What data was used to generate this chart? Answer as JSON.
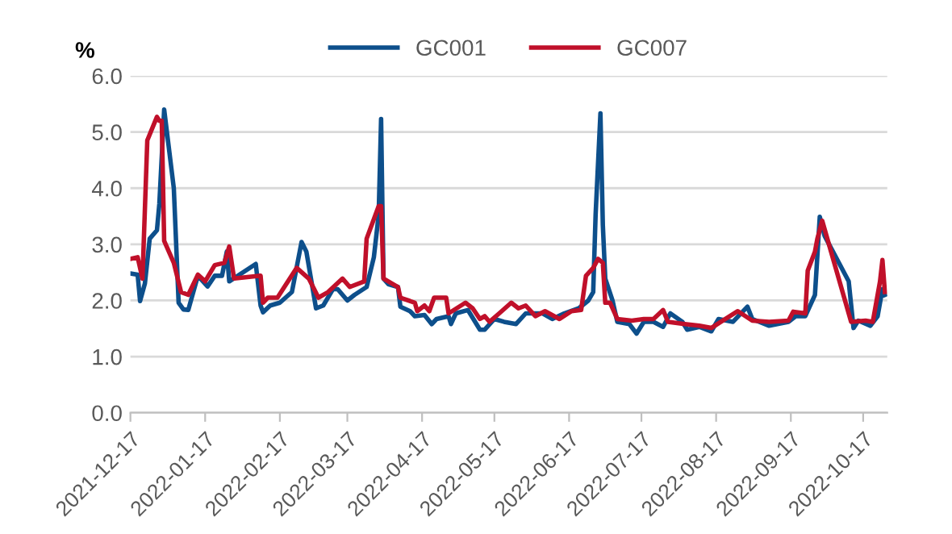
{
  "chart_data": {
    "type": "line",
    "ylabel": "%",
    "legend": "top",
    "grid": "y",
    "marker": "none",
    "line_style": "solid",
    "ylim": [
      0,
      6
    ],
    "yticks": [
      {
        "value": 0,
        "label": "0.0"
      },
      {
        "value": 1,
        "label": "1.0"
      },
      {
        "value": 2,
        "label": "2.0"
      },
      {
        "value": 3,
        "label": "3.0"
      },
      {
        "value": 4,
        "label": "4.0"
      },
      {
        "value": 5,
        "label": "5.0"
      },
      {
        "value": 6,
        "label": "6.0"
      }
    ],
    "xlim": [
      "2021-12-17",
      "2022-10-27"
    ],
    "xticks": [
      {
        "value": "2021-12-17",
        "label": "2021-12-17"
      },
      {
        "value": "2022-01-17",
        "label": "2022-01-17"
      },
      {
        "value": "2022-02-17",
        "label": "2022-02-17"
      },
      {
        "value": "2022-03-17",
        "label": "2022-03-17"
      },
      {
        "value": "2022-04-17",
        "label": "2022-04-17"
      },
      {
        "value": "2022-05-17",
        "label": "2022-05-17"
      },
      {
        "value": "2022-06-17",
        "label": "2022-06-17"
      },
      {
        "value": "2022-07-17",
        "label": "2022-07-17"
      },
      {
        "value": "2022-08-17",
        "label": "2022-08-17"
      },
      {
        "value": "2022-09-17",
        "label": "2022-09-17"
      },
      {
        "value": "2022-10-17",
        "label": "2022-10-17"
      }
    ],
    "series": [
      {
        "name": "GC001",
        "color": "#0d4f8b",
        "x": [
          "2021-12-17",
          "2021-12-20",
          "2021-12-21",
          "2021-12-23",
          "2021-12-25",
          "2021-12-28",
          "2021-12-29",
          "2021-12-31",
          "2022-01-04",
          "2022-01-06",
          "2022-01-08",
          "2022-01-10",
          "2022-01-14",
          "2022-01-18",
          "2022-01-21",
          "2022-01-24",
          "2022-01-26",
          "2022-01-27",
          "2022-02-07",
          "2022-02-09",
          "2022-02-10",
          "2022-02-13",
          "2022-02-17",
          "2022-02-22",
          "2022-02-26",
          "2022-02-28",
          "2022-03-04",
          "2022-03-07",
          "2022-03-11",
          "2022-03-13",
          "2022-03-17",
          "2022-03-20",
          "2022-03-25",
          "2022-03-28",
          "2022-03-30",
          "2022-03-31",
          "2022-04-01",
          "2022-04-03",
          "2022-04-07",
          "2022-04-08",
          "2022-04-12",
          "2022-04-14",
          "2022-04-18",
          "2022-04-21",
          "2022-04-23",
          "2022-04-28",
          "2022-04-29",
          "2022-05-01",
          "2022-05-06",
          "2022-05-11",
          "2022-05-13",
          "2022-05-17",
          "2022-05-21",
          "2022-05-26",
          "2022-05-30",
          "2022-06-06",
          "2022-06-10",
          "2022-06-15",
          "2022-06-21",
          "2022-06-25",
          "2022-06-27",
          "2022-06-28",
          "2022-06-30",
          "2022-07-01",
          "2022-07-02",
          "2022-07-05",
          "2022-07-07",
          "2022-07-12",
          "2022-07-15",
          "2022-07-18",
          "2022-07-22",
          "2022-07-26",
          "2022-07-29",
          "2022-08-03",
          "2022-08-05",
          "2022-08-10",
          "2022-08-15",
          "2022-08-18",
          "2022-08-24",
          "2022-08-30",
          "2022-09-01",
          "2022-09-08",
          "2022-09-16",
          "2022-09-19",
          "2022-09-23",
          "2022-09-27",
          "2022-09-29",
          "2022-10-01",
          "2022-10-11",
          "2022-10-13",
          "2022-10-15",
          "2022-10-20",
          "2022-10-23",
          "2022-10-25",
          "2022-10-26"
        ],
        "values": [
          2.48,
          2.46,
          1.99,
          2.3,
          3.1,
          3.25,
          3.72,
          5.4,
          4.0,
          1.96,
          1.84,
          1.83,
          2.44,
          2.25,
          2.44,
          2.44,
          2.87,
          2.34,
          2.65,
          1.91,
          1.79,
          1.91,
          1.96,
          2.15,
          3.04,
          2.87,
          1.86,
          1.91,
          2.2,
          2.2,
          2.0,
          2.1,
          2.24,
          2.77,
          3.53,
          5.23,
          2.39,
          2.29,
          2.24,
          1.89,
          1.81,
          1.72,
          1.74,
          1.58,
          1.67,
          1.72,
          1.58,
          1.77,
          1.83,
          1.48,
          1.48,
          1.67,
          1.62,
          1.58,
          1.77,
          1.77,
          1.67,
          1.77,
          1.86,
          2.0,
          2.15,
          3.53,
          5.33,
          3.34,
          2.39,
          2.0,
          1.62,
          1.58,
          1.41,
          1.62,
          1.62,
          1.53,
          1.77,
          1.62,
          1.48,
          1.53,
          1.45,
          1.67,
          1.62,
          1.89,
          1.67,
          1.55,
          1.62,
          1.72,
          1.72,
          2.1,
          3.49,
          3.15,
          2.34,
          1.51,
          1.64,
          1.55,
          1.72,
          2.2,
          2.1
        ]
      },
      {
        "name": "GC007",
        "color": "#c0102a",
        "x": [
          "2021-12-17",
          "2021-12-20",
          "2021-12-22",
          "2021-12-24",
          "2021-12-28",
          "2021-12-29",
          "2021-12-30",
          "2021-12-31",
          "2022-01-04",
          "2022-01-07",
          "2022-01-10",
          "2022-01-14",
          "2022-01-17",
          "2022-01-21",
          "2022-01-25",
          "2022-01-27",
          "2022-01-29",
          "2022-02-09",
          "2022-02-10",
          "2022-02-12",
          "2022-02-16",
          "2022-02-24",
          "2022-03-01",
          "2022-03-05",
          "2022-03-09",
          "2022-03-15",
          "2022-03-18",
          "2022-03-24",
          "2022-03-25",
          "2022-03-30",
          "2022-03-31",
          "2022-04-01",
          "2022-04-07",
          "2022-04-08",
          "2022-04-14",
          "2022-04-15",
          "2022-04-18",
          "2022-04-20",
          "2022-04-22",
          "2022-04-27",
          "2022-04-28",
          "2022-05-05",
          "2022-05-08",
          "2022-05-11",
          "2022-05-13",
          "2022-05-15",
          "2022-05-19",
          "2022-05-24",
          "2022-05-27",
          "2022-05-30",
          "2022-06-03",
          "2022-06-07",
          "2022-06-13",
          "2022-06-18",
          "2022-06-22",
          "2022-06-24",
          "2022-06-27",
          "2022-06-29",
          "2022-07-01",
          "2022-07-02",
          "2022-07-04",
          "2022-07-07",
          "2022-07-13",
          "2022-07-18",
          "2022-07-22",
          "2022-07-26",
          "2022-07-28",
          "2022-08-04",
          "2022-08-10",
          "2022-08-15",
          "2022-08-19",
          "2022-08-26",
          "2022-09-01",
          "2022-09-08",
          "2022-09-16",
          "2022-09-18",
          "2022-09-23",
          "2022-09-24",
          "2022-09-27",
          "2022-09-28",
          "2022-09-30",
          "2022-10-12",
          "2022-10-18",
          "2022-10-21",
          "2022-10-24",
          "2022-10-25",
          "2022-10-26"
        ],
        "values": [
          2.74,
          2.77,
          2.39,
          4.85,
          5.27,
          5.2,
          5.2,
          3.06,
          2.67,
          2.15,
          2.1,
          2.46,
          2.34,
          2.63,
          2.67,
          2.96,
          2.39,
          2.44,
          1.96,
          2.05,
          2.05,
          2.58,
          2.39,
          2.05,
          2.15,
          2.39,
          2.24,
          2.34,
          3.1,
          3.68,
          3.68,
          2.39,
          2.24,
          2.05,
          1.96,
          1.81,
          1.91,
          1.81,
          2.05,
          2.05,
          1.77,
          1.96,
          1.86,
          1.67,
          1.72,
          1.62,
          1.77,
          1.96,
          1.86,
          1.91,
          1.72,
          1.81,
          1.67,
          1.81,
          1.83,
          2.44,
          2.58,
          2.74,
          2.67,
          1.96,
          1.96,
          1.67,
          1.64,
          1.67,
          1.67,
          1.83,
          1.62,
          1.58,
          1.55,
          1.51,
          1.62,
          1.81,
          1.64,
          1.62,
          1.64,
          1.8,
          1.77,
          2.53,
          2.87,
          3.1,
          3.42,
          1.62,
          1.64,
          1.62,
          2.34,
          2.72,
          2.15
        ]
      }
    ]
  }
}
